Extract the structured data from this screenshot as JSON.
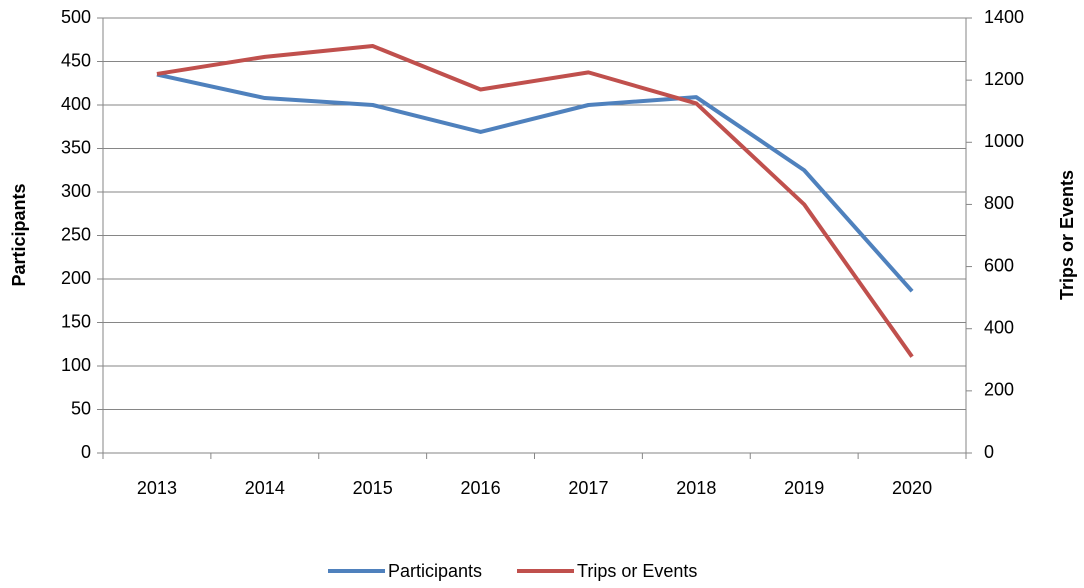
{
  "chart_data": {
    "type": "line",
    "categories": [
      "2013",
      "2014",
      "2015",
      "2016",
      "2017",
      "2018",
      "2019",
      "2020"
    ],
    "series": [
      {
        "name": "Participants",
        "color": "#4f81bd",
        "values": [
          435,
          408,
          400,
          369,
          400,
          409,
          325,
          186
        ]
      },
      {
        "name": "Trips or Events",
        "color": "#c0504d",
        "axis": "y2",
        "values": [
          1220,
          1275,
          1310,
          1170,
          1225,
          1125,
          800,
          310
        ]
      }
    ],
    "y_label": "Participants",
    "y2_label": "Trips or Events",
    "ylim": [
      0,
      500
    ],
    "yticks": [
      0,
      50,
      100,
      150,
      200,
      250,
      300,
      350,
      400,
      450,
      500
    ],
    "y2lim": [
      0,
      1400
    ],
    "y2ticks": [
      0,
      200,
      400,
      600,
      800,
      1000,
      1200,
      1400
    ],
    "grid": true,
    "legend": "bottom"
  }
}
